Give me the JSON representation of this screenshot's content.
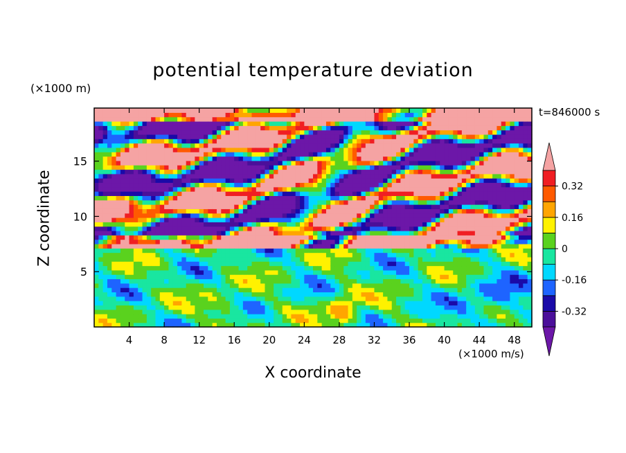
{
  "chart_data": {
    "type": "heatmap",
    "title": "potential temperature deviation",
    "xlabel": "X coordinate",
    "ylabel": "Z coordinate",
    "x_unit": "(×1000 m/s)",
    "y_unit": "(×1000 m)",
    "time_label": "t=846000 s",
    "xlim": [
      0,
      50
    ],
    "ylim": [
      0,
      19.8
    ],
    "x_ticks": [
      4,
      8,
      12,
      16,
      20,
      24,
      28,
      32,
      36,
      40,
      44,
      48
    ],
    "y_ticks": [
      5,
      10,
      15
    ],
    "colorbar": {
      "levels": [
        -0.4,
        -0.32,
        -0.24,
        -0.16,
        -0.08,
        0,
        0.08,
        0.16,
        0.24,
        0.32,
        0.4
      ],
      "labels": [
        "0.32",
        "0.16",
        "0",
        "-0.16",
        "-0.32"
      ],
      "label_values": [
        0.32,
        0.16,
        0,
        -0.16,
        -0.32
      ],
      "colors_low_to_high": [
        "#4b0f9a",
        "#1a0aa8",
        "#1e64ff",
        "#00d8ff",
        "#19e6a0",
        "#5ad21e",
        "#fff200",
        "#ffa500",
        "#ff5a00",
        "#f01e23"
      ],
      "under_color": "#6c17a8",
      "over_color": "#f5a3a3",
      "extend": "both"
    },
    "field_description": "lower layer (z below about 7) weak deviations in greens, yellows, blues; upper layer (z above 7) strongly banded with pink (above 0.4) and purple (below -0.4) filaments",
    "background_color": "#ffffff"
  }
}
